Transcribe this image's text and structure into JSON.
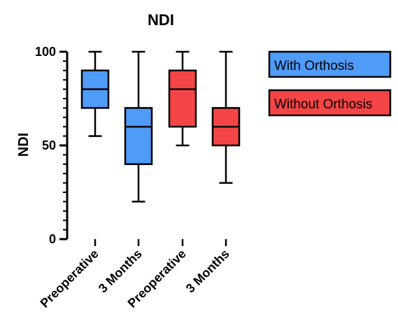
{
  "chart_data": {
    "type": "box",
    "title": "NDI",
    "ylabel": "NDI",
    "xlabel": "",
    "ylim": [
      0,
      100
    ],
    "yticks": [
      0,
      50,
      100
    ],
    "minor_tick_step": 5,
    "grid": false,
    "legend_placement": "right",
    "categories": [
      "Preoperative",
      "3 Months",
      "Preoperative",
      "3 Months"
    ],
    "series": [
      {
        "name": "With Orthosis",
        "color": "#4f9bf8",
        "boxes": [
          {
            "category_index": 0,
            "min": 55,
            "q1": 70,
            "median": 80,
            "q3": 90,
            "max": 100
          },
          {
            "category_index": 1,
            "min": 20,
            "q1": 40,
            "median": 60,
            "q3": 70,
            "max": 100
          }
        ]
      },
      {
        "name": "Without Orthosis",
        "color": "#f44546",
        "boxes": [
          {
            "category_index": 2,
            "min": 50,
            "q1": 60,
            "median": 80,
            "q3": 90,
            "max": 100
          },
          {
            "category_index": 3,
            "min": 30,
            "q1": 50,
            "median": 60,
            "q3": 70,
            "max": 100
          }
        ]
      }
    ]
  }
}
